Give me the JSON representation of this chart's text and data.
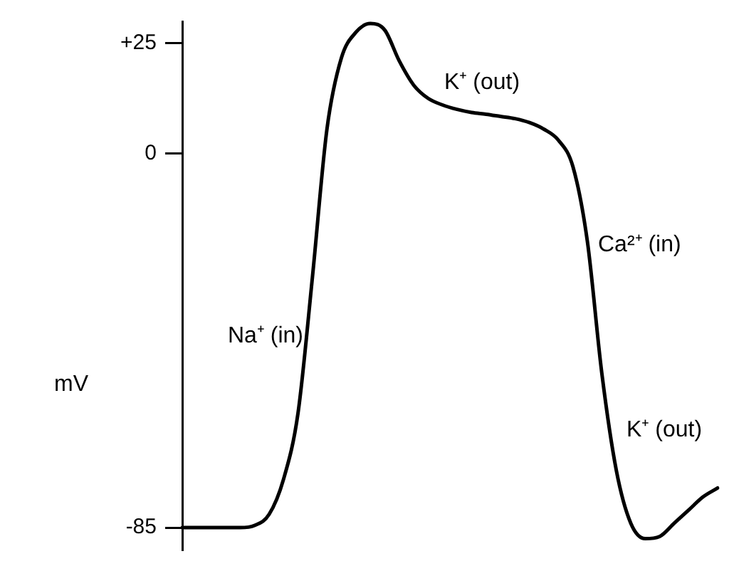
{
  "chart_data": {
    "type": "line",
    "ylabel": "mV",
    "categories": [
      null,
      null,
      null,
      null,
      null,
      null,
      null,
      null,
      null,
      null,
      null,
      null,
      null,
      null,
      null,
      null,
      null,
      null,
      null,
      null,
      null,
      null,
      null,
      null,
      null,
      null,
      null,
      null,
      null,
      null,
      null,
      null,
      null,
      null,
      null,
      null,
      null,
      null
    ],
    "series": [
      {
        "color": "#000000",
        "values": [
          -85,
          -85,
          -85,
          -85,
          -85,
          -84.5,
          -82,
          -74,
          -59,
          -28,
          5.5,
          21.7,
          27.5,
          29.5,
          28,
          21,
          15.5,
          12.5,
          11,
          10,
          9.3,
          8.9,
          8.4,
          7.9,
          7,
          5.5,
          3,
          -3,
          -20,
          -50,
          -72,
          -84,
          -87.5,
          -87,
          -84,
          -81,
          -78,
          -76
        ]
      }
    ],
    "ylim": [
      -90,
      30
    ],
    "yticks": [
      {
        "value": 25,
        "label": "+25"
      },
      0,
      -85
    ],
    "tick_labels": "y",
    "grid": false,
    "legend": false,
    "marker": "none",
    "line_style": "solid",
    "annotations": [
      "Na⁺ (in)",
      "K⁺ (out)",
      "Ca²⁺ (in)",
      "K⁺ (out)"
    ]
  }
}
